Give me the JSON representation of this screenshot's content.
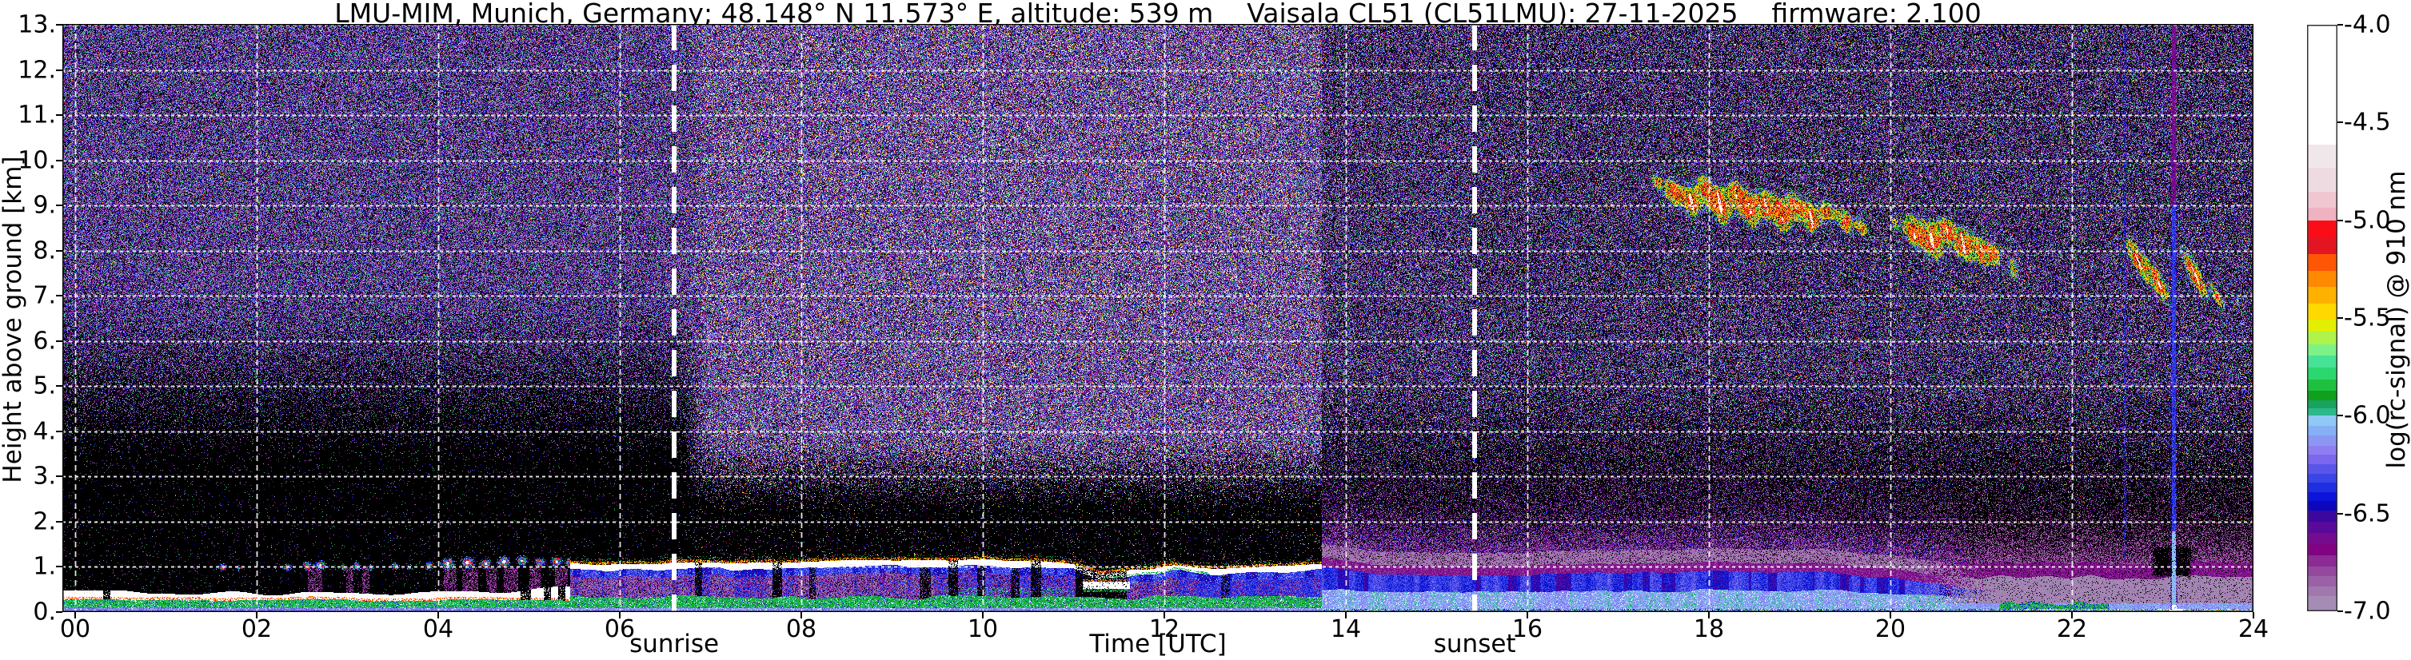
{
  "chart_data": {
    "type": "heatmap",
    "title": "LMU-MIM, Munich, Germany; 48.148° N 11.573° E, altitude: 539 m    Vaisala CL51 (CL51LMU): 27-11-2025    firmware: 2.100",
    "xlabel": "Time [UTC]",
    "ylabel": "Height above ground [km]",
    "x_unit": "hours UTC",
    "x_range": [
      0,
      24
    ],
    "y_unit": "km",
    "y_range": [
      0,
      13
    ],
    "x_ticks": [
      {
        "t": 0,
        "label": "00"
      },
      {
        "t": 2,
        "label": "02"
      },
      {
        "t": 4,
        "label": "04"
      },
      {
        "t": 6,
        "label": "06"
      },
      {
        "t": 8,
        "label": "08"
      },
      {
        "t": 10,
        "label": "10"
      },
      {
        "t": 12,
        "label": "12"
      },
      {
        "t": 14,
        "label": "14"
      },
      {
        "t": 16,
        "label": "16"
      },
      {
        "t": 18,
        "label": "18"
      },
      {
        "t": 20,
        "label": "20"
      },
      {
        "t": 22,
        "label": "22"
      },
      {
        "t": 24,
        "label": "24"
      }
    ],
    "y_ticks": [
      {
        "km": 0,
        "label": "0."
      },
      {
        "km": 1,
        "label": "1."
      },
      {
        "km": 2,
        "label": "2."
      },
      {
        "km": 3,
        "label": "3."
      },
      {
        "km": 4,
        "label": "4."
      },
      {
        "km": 5,
        "label": "5."
      },
      {
        "km": 6,
        "label": "6."
      },
      {
        "km": 7,
        "label": "7."
      },
      {
        "km": 8,
        "label": "8."
      },
      {
        "km": 9,
        "label": "9."
      },
      {
        "km": 10,
        "label": "10."
      },
      {
        "km": 11,
        "label": "11."
      },
      {
        "km": 12,
        "label": "12."
      },
      {
        "km": 13,
        "label": "13."
      }
    ],
    "grid": {
      "horizontal_every_km": 1,
      "vertical_every_hours": 2,
      "style": "white dashed"
    },
    "annotations": [
      {
        "label": "sunrise",
        "time": 6.6
      },
      {
        "label": "sunset",
        "time": 15.42
      }
    ],
    "colorbar": {
      "label": "log(rc-signal) @ 910 nm",
      "min": -7.0,
      "max": -4.0,
      "ticks": [
        "-4.0",
        "-4.5",
        "-5.0",
        "-5.5",
        "-6.0",
        "-6.5",
        "-7.0"
      ],
      "under_color": "#000000",
      "stops": [
        [
          0.0,
          "#ffffff"
        ],
        [
          0.205,
          "#f0e7eb"
        ],
        [
          0.245,
          "#eedbe1"
        ],
        [
          0.285,
          "#f0c6d1"
        ],
        [
          0.313,
          "#efb2c1"
        ],
        [
          0.335,
          "#fb0d17"
        ],
        [
          0.364,
          "#e41523"
        ],
        [
          0.392,
          "#fe5605"
        ],
        [
          0.42,
          "#ff8a02"
        ],
        [
          0.448,
          "#ffb101"
        ],
        [
          0.476,
          "#ffd800"
        ],
        [
          0.503,
          "#e3ef02"
        ],
        [
          0.524,
          "#aef44a"
        ],
        [
          0.545,
          "#7df287"
        ],
        [
          0.565,
          "#46e295"
        ],
        [
          0.585,
          "#2bd76f"
        ],
        [
          0.605,
          "#1ec13f"
        ],
        [
          0.624,
          "#10a01d"
        ],
        [
          0.641,
          "#19a35f"
        ],
        [
          0.654,
          "#2cb88b"
        ],
        [
          0.667,
          "#8fc9f5"
        ],
        [
          0.684,
          "#86b0f6"
        ],
        [
          0.701,
          "#8b97f3"
        ],
        [
          0.718,
          "#8d7ef1"
        ],
        [
          0.734,
          "#7a67ee"
        ],
        [
          0.75,
          "#5a55ea"
        ],
        [
          0.766,
          "#3a45e5"
        ],
        [
          0.782,
          "#1e2fe1"
        ],
        [
          0.798,
          "#0d14da"
        ],
        [
          0.813,
          "#0c06bd"
        ],
        [
          0.829,
          "#3c079e"
        ],
        [
          0.848,
          "#5a0a9a"
        ],
        [
          0.867,
          "#750b8f"
        ],
        [
          0.886,
          "#800383"
        ],
        [
          0.905,
          "#8b2b93"
        ],
        [
          0.924,
          "#94489e"
        ],
        [
          0.941,
          "#9b61a7"
        ],
        [
          0.958,
          "#a078ae"
        ],
        [
          0.975,
          "#a48cb5"
        ]
      ]
    },
    "phenomena": {
      "regime_change_time": 13.73,
      "night_surface_layer": {
        "time_range": [
          0,
          5.45
        ],
        "white_top_km": 0.45,
        "white_bottom_km": 0.27,
        "green_band_km": [
          0.09,
          0.27
        ],
        "gaps": [
          [
            0.3,
            0.38
          ],
          [
            4.9,
            5.02
          ],
          [
            5.16,
            5.24
          ],
          [
            5.32,
            5.4
          ]
        ]
      },
      "morning_cloud_puffs": [
        [
          1.62,
          1.0,
          0.05,
          0.09,
          0.8
        ],
        [
          1.8,
          0.98,
          0.04,
          0.07,
          0.6
        ],
        [
          2.33,
          1.0,
          0.05,
          0.08,
          0.75
        ],
        [
          2.55,
          1.03,
          0.05,
          0.1,
          0.9
        ],
        [
          2.7,
          1.05,
          0.06,
          0.1,
          0.95
        ],
        [
          2.95,
          1.0,
          0.04,
          0.08,
          0.7
        ],
        [
          3.1,
          1.02,
          0.05,
          0.09,
          0.8
        ],
        [
          3.25,
          1.0,
          0.04,
          0.08,
          0.7
        ],
        [
          3.52,
          1.02,
          0.05,
          0.08,
          0.75
        ],
        [
          3.68,
          1.0,
          0.04,
          0.07,
          0.6
        ],
        [
          3.9,
          1.03,
          0.05,
          0.09,
          0.8
        ],
        [
          4.1,
          1.08,
          0.07,
          0.12,
          1.0
        ],
        [
          4.32,
          1.1,
          0.07,
          0.12,
          1.0
        ],
        [
          4.52,
          1.08,
          0.06,
          0.11,
          0.95
        ],
        [
          4.72,
          1.12,
          0.07,
          0.12,
          1.0
        ],
        [
          4.92,
          1.14,
          0.06,
          0.11,
          0.95
        ],
        [
          5.12,
          1.1,
          0.06,
          0.11,
          0.9
        ],
        [
          5.3,
          1.12,
          0.06,
          0.12,
          0.95
        ],
        [
          5.45,
          1.1,
          0.05,
          0.1,
          0.85
        ]
      ],
      "virga_columns": [
        [
          2.56,
          2.72
        ],
        [
          2.98,
          3.06
        ],
        [
          3.16,
          3.24
        ],
        [
          4.06,
          4.2
        ],
        [
          4.26,
          4.44
        ],
        [
          4.52,
          4.64
        ],
        [
          4.72,
          4.88
        ],
        [
          5.0,
          5.12
        ],
        [
          5.28,
          5.42
        ]
      ],
      "capped_layer": {
        "time_range": [
          5.45,
          13.73
        ],
        "cap_top_km": [
          [
            5.45,
            1.06
          ],
          [
            6.2,
            1.1
          ],
          [
            7,
            1.08
          ],
          [
            8,
            1.12
          ],
          [
            9,
            1.14
          ],
          [
            9.8,
            1.17
          ],
          [
            10.6,
            1.15
          ],
          [
            11.0,
            1.05
          ],
          [
            11.3,
            0.85
          ],
          [
            11.6,
            0.95
          ],
          [
            12.1,
            1.02
          ],
          [
            12.6,
            0.94
          ],
          [
            13.1,
            1.02
          ],
          [
            13.73,
            1.06
          ]
        ],
        "cap_breaks": [
          [
            6.82,
            6.9,
            0.8
          ],
          [
            7.68,
            7.78,
            0.85
          ],
          [
            8.08,
            8.15,
            0.55
          ],
          [
            9.3,
            9.42,
            0.7
          ],
          [
            9.62,
            9.72,
            0.8
          ],
          [
            9.93,
            10.02,
            0.65
          ],
          [
            10.3,
            10.4,
            0.65
          ],
          [
            10.52,
            10.64,
            0.8
          ],
          [
            11.02,
            11.58,
            0.95
          ],
          [
            12.62,
            12.72,
            0.45
          ]
        ]
      },
      "evening_layer": {
        "blue_top_km": [
          [
            13.73,
            1.0
          ],
          [
            14.4,
            0.84
          ],
          [
            15.2,
            0.8
          ],
          [
            16.5,
            0.86
          ],
          [
            18,
            0.92
          ],
          [
            19.3,
            0.88
          ],
          [
            20.2,
            0.72
          ],
          [
            21,
            0.5
          ],
          [
            21.8,
            0.34
          ],
          [
            22.5,
            0.24
          ],
          [
            23.1,
            0.18
          ],
          [
            23.7,
            0.2
          ],
          [
            24,
            0.24
          ]
        ],
        "haze_top_km": 3.6,
        "green_mounds_time": [
          21.2,
          22.4
        ]
      },
      "cirrus_clusters": [
        {
          "time_range": [
            17.4,
            21.5
          ],
          "height_km": [
            7.6,
            9.7
          ],
          "slant": 0.1,
          "blobs": [
            [
              17.42,
              9.55,
              0.06,
              0.2,
              0.55
            ],
            [
              17.6,
              9.3,
              0.09,
              0.3,
              0.85
            ],
            [
              17.8,
              9.1,
              0.1,
              0.35,
              0.95
            ],
            [
              17.95,
              9.35,
              0.08,
              0.3,
              0.8
            ],
            [
              18.12,
              9.0,
              0.1,
              0.4,
              1.0
            ],
            [
              18.3,
              9.25,
              0.09,
              0.3,
              0.85
            ],
            [
              18.45,
              8.9,
              0.1,
              0.35,
              0.95
            ],
            [
              18.62,
              9.05,
              0.09,
              0.3,
              0.9
            ],
            [
              18.8,
              8.8,
              0.1,
              0.35,
              0.95
            ],
            [
              18.95,
              9.0,
              0.08,
              0.3,
              0.8
            ],
            [
              19.12,
              8.75,
              0.09,
              0.35,
              0.9
            ],
            [
              19.3,
              8.9,
              0.08,
              0.25,
              0.75
            ],
            [
              19.5,
              8.65,
              0.08,
              0.3,
              0.7
            ],
            [
              19.68,
              8.55,
              0.07,
              0.25,
              0.6
            ],
            [
              20.05,
              8.6,
              0.05,
              0.15,
              0.5
            ],
            [
              20.25,
              8.45,
              0.1,
              0.35,
              0.9
            ],
            [
              20.45,
              8.25,
              0.1,
              0.4,
              1.0
            ],
            [
              20.62,
              8.45,
              0.08,
              0.3,
              0.85
            ],
            [
              20.8,
              8.15,
              0.1,
              0.35,
              0.95
            ],
            [
              21.0,
              8.0,
              0.09,
              0.3,
              0.9
            ],
            [
              21.15,
              7.9,
              0.07,
              0.25,
              0.7
            ],
            [
              21.35,
              7.6,
              0.06,
              0.3,
              0.5
            ]
          ]
        },
        {
          "time_range": [
            22.6,
            23.9
          ],
          "height_km": [
            6.6,
            8.1
          ],
          "slant": 0.22,
          "blobs": [
            [
              22.72,
              7.8,
              0.07,
              0.45,
              0.9
            ],
            [
              22.95,
              7.3,
              0.07,
              0.45,
              0.85
            ],
            [
              23.35,
              7.5,
              0.07,
              0.5,
              0.95
            ],
            [
              23.6,
              7.0,
              0.05,
              0.3,
              0.6
            ],
            [
              23.85,
              6.8,
              0.04,
              0.2,
              0.4
            ]
          ]
        }
      ],
      "vertical_streaks": [
        {
          "time": 22.58,
          "strength": 0.45,
          "base_km": 1.2
        },
        {
          "time": 23.12,
          "strength": 1.0,
          "base_km": 0.05
        }
      ],
      "black_blob": {
        "time_range": [
          22.86,
          23.34
        ],
        "height_range": [
          0.75,
          1.5
        ]
      },
      "white_ground_blob_time": 23.14
    }
  }
}
